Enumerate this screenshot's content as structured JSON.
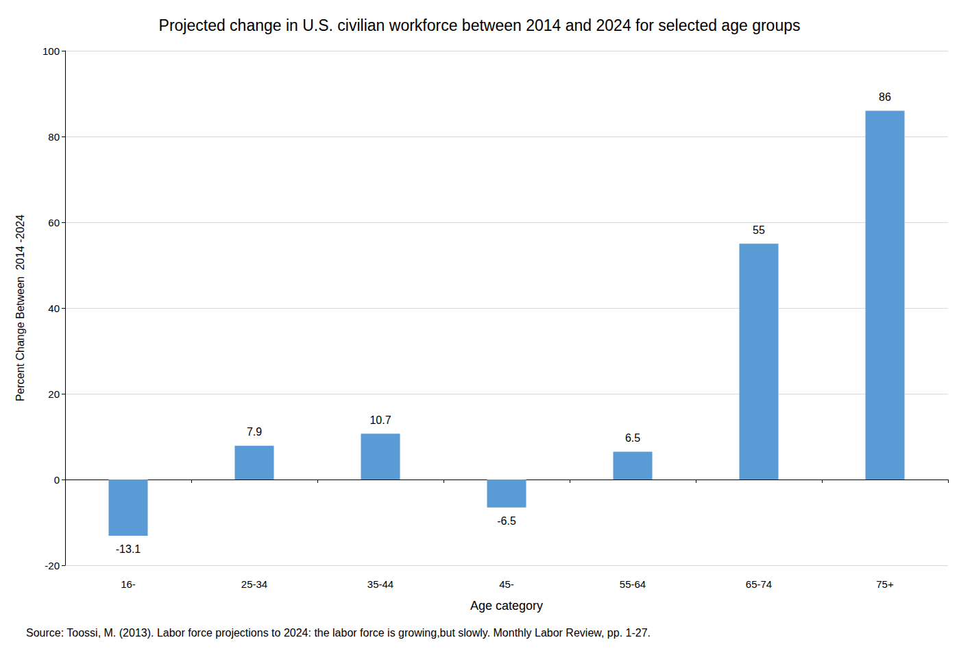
{
  "chart_data": {
    "type": "bar",
    "title": "Projected change in U.S. civilian workforce between 2014 and 2024 for selected age groups",
    "xlabel": "Age category",
    "ylabel": "Percent Change Between  2014 -2024",
    "source": "Source: Toossi, M. (2013). Labor force projections to 2024: the labor force is growing,but slowly. Monthly Labor Review, pp. 1-27.",
    "categories": [
      "16-",
      "25-34",
      "35-44",
      "45-",
      "55-64",
      "65-74",
      "75+"
    ],
    "values": [
      -13.1,
      7.9,
      10.7,
      -6.5,
      6.5,
      55,
      86
    ],
    "color": "#5b9bd5",
    "ylim": [
      -20,
      100
    ],
    "yticks": [
      -20,
      0,
      20,
      40,
      60,
      80,
      100
    ],
    "grid": true,
    "data_labels": true
  }
}
